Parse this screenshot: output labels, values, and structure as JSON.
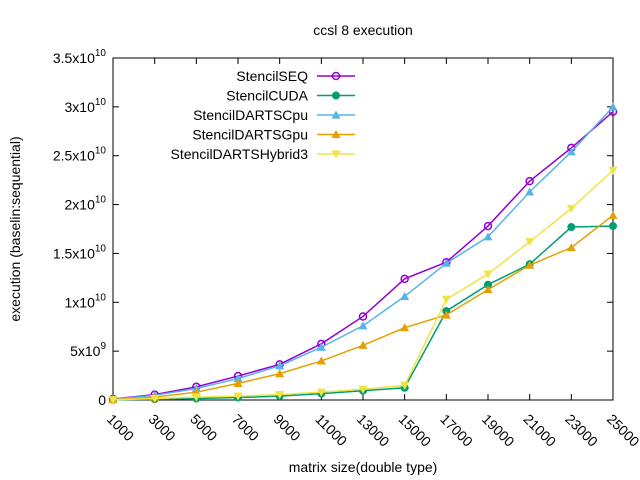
{
  "chart_data": {
    "type": "line",
    "title": "ccsl 8 execution",
    "xlabel": "matrix size(double type)",
    "ylabel": "execution (baselin:sequential)",
    "x": [
      1000,
      3000,
      5000,
      7000,
      9000,
      11000,
      13000,
      15000,
      17000,
      19000,
      21000,
      23000,
      25000
    ],
    "x_tick_labels": [
      "1000",
      "3000",
      "5000",
      "7000",
      "9000",
      "11000",
      "13000",
      "15000",
      "17000",
      "19000",
      "21000",
      "23000",
      "25000"
    ],
    "xlim": [
      1000,
      25000
    ],
    "ylim": [
      0,
      35000000000
    ],
    "y_ticks": [
      {
        "value": 0,
        "mantissa": "0",
        "exp": ""
      },
      {
        "value": 5000000000,
        "mantissa": "5x10",
        "exp": "9"
      },
      {
        "value": 10000000000,
        "mantissa": "1x10",
        "exp": "10"
      },
      {
        "value": 15000000000,
        "mantissa": "1.5x10",
        "exp": "10"
      },
      {
        "value": 20000000000,
        "mantissa": "2x10",
        "exp": "10"
      },
      {
        "value": 25000000000,
        "mantissa": "2.5x10",
        "exp": "10"
      },
      {
        "value": 30000000000,
        "mantissa": "3x10",
        "exp": "10"
      },
      {
        "value": 35000000000,
        "mantissa": "3.5x10",
        "exp": "10"
      }
    ],
    "grid": false,
    "legend_position": "top-left",
    "series": [
      {
        "name": "StencilSEQ",
        "color": "#9400d3",
        "marker": "circle-open",
        "values": [
          100000000,
          550000000,
          1350000000,
          2450000000,
          3650000000,
          5750000000,
          8550000000,
          12400000000,
          14100000000,
          17800000000,
          22400000000,
          25800000000,
          29500000000
        ]
      },
      {
        "name": "StencilCUDA",
        "color": "#009e73",
        "marker": "circle-filled",
        "values": [
          20000000,
          80000000,
          150000000,
          250000000,
          400000000,
          650000000,
          950000000,
          1250000000,
          9100000000,
          11800000000,
          13900000000,
          17700000000,
          17800000000
        ]
      },
      {
        "name": "StencilDARTSCpu",
        "color": "#56b4e9",
        "marker": "triangle",
        "values": [
          90000000,
          480000000,
          1180000000,
          2200000000,
          3500000000,
          5400000000,
          7600000000,
          10600000000,
          14000000000,
          16700000000,
          21300000000,
          25400000000,
          30000000000
        ]
      },
      {
        "name": "StencilDARTSGpu",
        "color": "#e69f00",
        "marker": "triangle",
        "values": [
          50000000,
          300000000,
          800000000,
          1700000000,
          2700000000,
          4000000000,
          5600000000,
          7400000000,
          8700000000,
          11300000000,
          13800000000,
          15600000000,
          18900000000
        ]
      },
      {
        "name": "StencilDARTSHybrid3",
        "color": "#f0e442",
        "marker": "triangle-down",
        "values": [
          30000000,
          150000000,
          300000000,
          400000000,
          550000000,
          800000000,
          1100000000,
          1500000000,
          10300000000,
          12900000000,
          16200000000,
          19600000000,
          23500000000
        ]
      }
    ]
  }
}
